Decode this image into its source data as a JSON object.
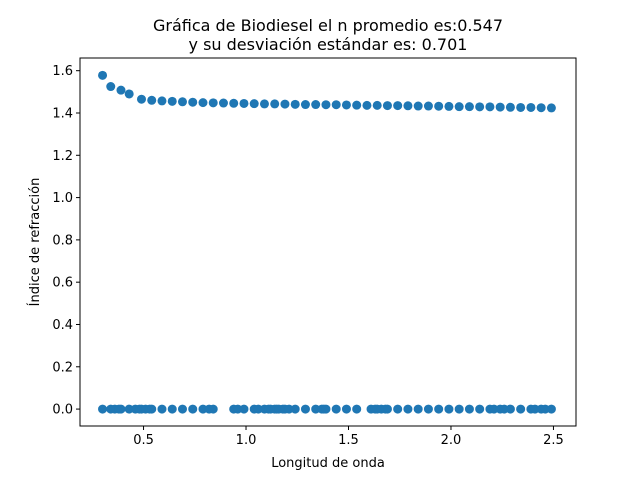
{
  "chart_data": {
    "type": "scatter",
    "title_lines": [
      "Gráfica de Biodiesel el n promedio es:0.547",
      "y su desviación estándar es: 0.701"
    ],
    "xlabel": "Longitud de onda",
    "ylabel": "Índice de refracción",
    "xlim": [
      0.19,
      2.61
    ],
    "ylim": [
      -0.08,
      1.66
    ],
    "xticks": [
      0.5,
      1.0,
      1.5,
      2.0,
      2.5
    ],
    "xtick_labels": [
      "0.5",
      "1.0",
      "1.5",
      "2.0",
      "2.5"
    ],
    "yticks": [
      0.0,
      0.2,
      0.4,
      0.6,
      0.8,
      1.0,
      1.2,
      1.4,
      1.6
    ],
    "ytick_labels": [
      "0.0",
      "0.2",
      "0.4",
      "0.6",
      "0.8",
      "1.0",
      "1.2",
      "1.4",
      "1.6"
    ],
    "grid": false,
    "marker_color": "#1f77b4",
    "series": [
      {
        "x": [
          0.3,
          0.34,
          0.39,
          0.43,
          0.49,
          0.54,
          0.59,
          0.64,
          0.69,
          0.74,
          0.79,
          0.84,
          0.89,
          0.94,
          0.99,
          1.04,
          1.09,
          1.14,
          1.19,
          1.24,
          1.29,
          1.34,
          1.39,
          1.44,
          1.49,
          1.54,
          1.59,
          1.64,
          1.69,
          1.74,
          1.79,
          1.84,
          1.89,
          1.94,
          1.99,
          2.04,
          2.09,
          2.14,
          2.19,
          2.24,
          2.29,
          2.34,
          2.39,
          2.44,
          2.49
        ],
        "y": [
          1.578,
          1.525,
          1.508,
          1.49,
          1.465,
          1.46,
          1.457,
          1.455,
          1.453,
          1.451,
          1.449,
          1.448,
          1.447,
          1.446,
          1.445,
          1.444,
          1.443,
          1.443,
          1.442,
          1.441,
          1.44,
          1.44,
          1.439,
          1.439,
          1.438,
          1.437,
          1.436,
          1.436,
          1.435,
          1.435,
          1.434,
          1.433,
          1.433,
          1.432,
          1.431,
          1.43,
          1.43,
          1.429,
          1.429,
          1.428,
          1.427,
          1.426,
          1.426,
          1.425,
          1.424
        ]
      },
      {
        "x": [
          0.3,
          0.34,
          0.36,
          0.38,
          0.39,
          0.43,
          0.46,
          0.48,
          0.49,
          0.51,
          0.53,
          0.54,
          0.59,
          0.64,
          0.69,
          0.74,
          0.79,
          0.82,
          0.84,
          0.94,
          0.96,
          0.99,
          1.04,
          1.06,
          1.09,
          1.11,
          1.12,
          1.14,
          1.15,
          1.16,
          1.18,
          1.19,
          1.21,
          1.24,
          1.29,
          1.34,
          1.37,
          1.38,
          1.39,
          1.44,
          1.49,
          1.54,
          1.61,
          1.63,
          1.64,
          1.66,
          1.68,
          1.69,
          1.74,
          1.79,
          1.84,
          1.89,
          1.94,
          1.99,
          2.04,
          2.09,
          2.14,
          2.19,
          2.21,
          2.24,
          2.26,
          2.29,
          2.34,
          2.39,
          2.41,
          2.44,
          2.46,
          2.49
        ],
        "y": [
          0,
          0,
          0,
          0,
          0,
          0,
          0,
          0,
          0,
          0,
          0,
          0,
          0,
          0,
          0,
          0,
          0,
          0,
          0,
          0,
          0,
          0,
          0,
          0,
          0,
          0,
          0,
          0,
          0,
          0,
          0,
          0,
          0,
          0,
          0,
          0,
          0,
          0,
          0,
          0,
          0,
          0,
          0,
          0,
          0,
          0,
          0,
          0,
          0,
          0,
          0,
          0,
          0,
          0,
          0,
          0,
          0,
          0,
          0,
          0,
          0,
          0,
          0,
          0,
          0,
          0,
          0,
          0
        ]
      }
    ]
  }
}
